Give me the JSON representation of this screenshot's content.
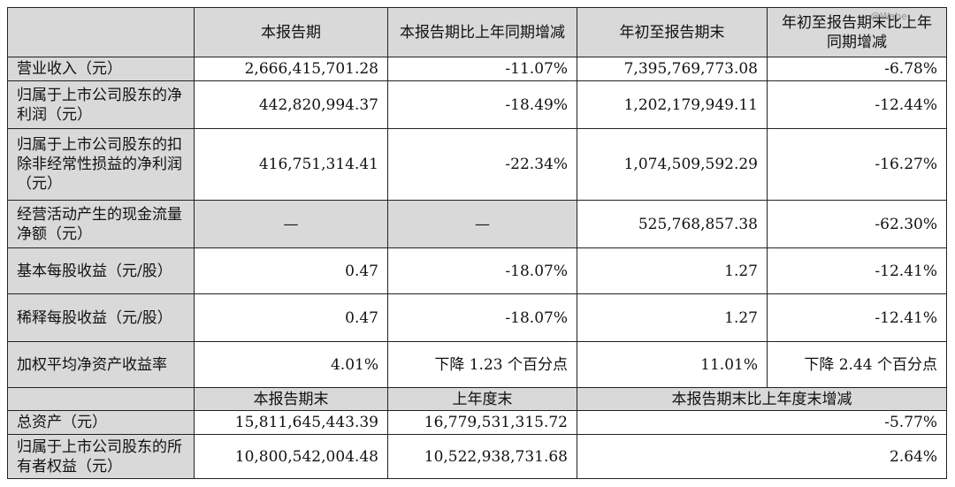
{
  "header": {
    "col1": "本报告期",
    "col2": "本报告期比上年同期增减",
    "col3": "年初至报告期末",
    "col4": "年初至报告期末比上年同期增减"
  },
  "rows": [
    {
      "label": "营业收入（元）",
      "v1": "2,666,415,701.28",
      "v2": "-11.07%",
      "v3": "7,395,769,773.08",
      "v4": "-6.78%"
    },
    {
      "label": "归属于上市公司股东的净利润（元）",
      "v1": "442,820,994.37",
      "v2": "-18.49%",
      "v3": "1,202,179,949.11",
      "v4": "-12.44%"
    },
    {
      "label": "归属于上市公司股东的扣除非经常性损益的净利润（元）",
      "v1": "416,751,314.41",
      "v2": "-22.34%",
      "v3": "1,074,509,592.29",
      "v4": "-16.27%"
    },
    {
      "label": "经营活动产生的现金流量净额（元）",
      "v1": "—",
      "v2": "—",
      "v3": "525,768,857.38",
      "v4": "-62.30%"
    },
    {
      "label": "基本每股收益（元/股）",
      "v1": "0.47",
      "v2": "-18.07%",
      "v3": "1.27",
      "v4": "-12.41%"
    },
    {
      "label": "稀释每股收益（元/股）",
      "v1": "0.47",
      "v2": "-18.07%",
      "v3": "1.27",
      "v4": "-12.41%"
    },
    {
      "label": "加权平均净资产收益率",
      "v1": "4.01%",
      "v2": "下降 1.23 个百分点",
      "v3": "11.01%",
      "v4": "下降 2.44 个百分点"
    }
  ],
  "header2": {
    "col1": "本报告期末",
    "col2": "上年度末",
    "col3": "本报告期末比上年度末增减"
  },
  "rows2": [
    {
      "label": "总资产（元）",
      "v1": "15,811,645,443.39",
      "v2": "16,779,531,315.72",
      "v3": "-5.77%"
    },
    {
      "label": "归属于上市公司股东的所有者权益（元）",
      "v1": "10,800,542,004.48",
      "v2": "10,522,938,731.68",
      "v3": "2.64%"
    }
  ],
  "watermark": "@Wabe"
}
